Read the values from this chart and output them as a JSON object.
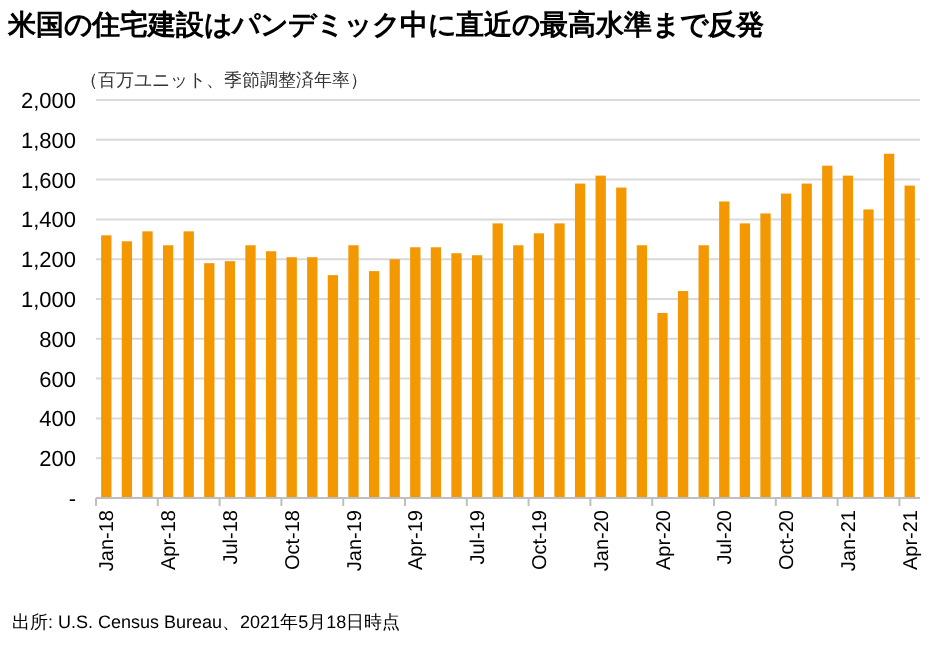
{
  "chart_data": {
    "type": "bar",
    "title": "米国の住宅建設はパンデミック中に直近の最高水準まで反発",
    "subtitle": "（百万ユニット、季節調整済年率）",
    "categories": [
      "Jan-18",
      null,
      null,
      "Apr-18",
      null,
      null,
      "Jul-18",
      null,
      null,
      "Oct-18",
      null,
      null,
      "Jan-19",
      null,
      null,
      "Apr-19",
      null,
      null,
      "Jul-19",
      null,
      null,
      "Oct-19",
      null,
      null,
      "Jan-20",
      null,
      null,
      "Apr-20",
      null,
      null,
      "Jul-20",
      null,
      null,
      "Oct-20",
      null,
      null,
      "Jan-21",
      null,
      null,
      "Apr-21"
    ],
    "values": [
      1320,
      1290,
      1340,
      1270,
      1340,
      1180,
      1190,
      1270,
      1240,
      1210,
      1210,
      1120,
      1270,
      1140,
      1200,
      1260,
      1260,
      1230,
      1220,
      1380,
      1270,
      1330,
      1380,
      1580,
      1620,
      1560,
      1270,
      930,
      1040,
      1270,
      1490,
      1380,
      1430,
      1530,
      1580,
      1670,
      1620,
      1450,
      1730,
      1570
    ],
    "color": "#f39800",
    "ylim": [
      0,
      2000
    ],
    "yticks": [
      {
        "value": 0,
        "label": "-"
      },
      {
        "value": 200,
        "label": "200"
      },
      {
        "value": 400,
        "label": "400"
      },
      {
        "value": 600,
        "label": "600"
      },
      {
        "value": 800,
        "label": "800"
      },
      {
        "value": 1000,
        "label": "1,000"
      },
      {
        "value": 1200,
        "label": "1,200"
      },
      {
        "value": 1400,
        "label": "1,400"
      },
      {
        "value": 1600,
        "label": "1,600"
      },
      {
        "value": 1800,
        "label": "1,800"
      },
      {
        "value": 2000,
        "label": "2,000"
      }
    ],
    "grid": "y",
    "annotations": [
      "出所: U.S. Census Bureau、2021年5月18日時点"
    ]
  }
}
